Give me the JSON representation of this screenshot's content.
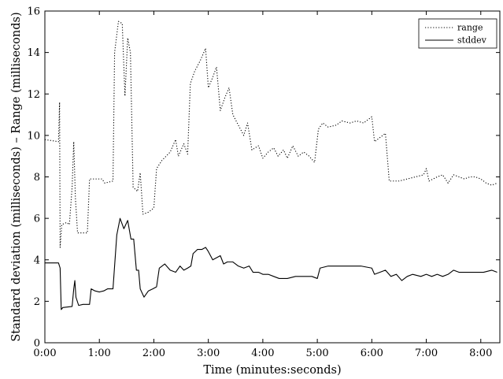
{
  "chart_data": {
    "type": "line",
    "xlabel": "Time (minutes:seconds)",
    "ylabel": "Standard deviation (milliseconds) – Range (milliseconds)",
    "xlim": [
      0,
      8.35
    ],
    "ylim": [
      0,
      16
    ],
    "x_unit": "minutes",
    "xticks": [
      {
        "value": 0,
        "label": "0:00"
      },
      {
        "value": 1,
        "label": "1:00"
      },
      {
        "value": 2,
        "label": "2:00"
      },
      {
        "value": 3,
        "label": "3:00"
      },
      {
        "value": 4,
        "label": "4:00"
      },
      {
        "value": 5,
        "label": "5:00"
      },
      {
        "value": 6,
        "label": "6:00"
      },
      {
        "value": 7,
        "label": "7:00"
      },
      {
        "value": 8,
        "label": "8:00"
      }
    ],
    "yticks": [
      {
        "value": 0,
        "label": "0"
      },
      {
        "value": 2,
        "label": "2"
      },
      {
        "value": 4,
        "label": "4"
      },
      {
        "value": 6,
        "label": "6"
      },
      {
        "value": 8,
        "label": "8"
      },
      {
        "value": 10,
        "label": "10"
      },
      {
        "value": 12,
        "label": "12"
      },
      {
        "value": 14,
        "label": "14"
      },
      {
        "value": 16,
        "label": "16"
      }
    ],
    "grid": false,
    "legend_position": "top-right",
    "series": [
      {
        "name": "range",
        "style": "dotted",
        "color": "#000000",
        "points": [
          [
            0.0,
            9.8
          ],
          [
            0.25,
            9.7
          ],
          [
            0.27,
            11.6
          ],
          [
            0.28,
            4.6
          ],
          [
            0.31,
            5.7
          ],
          [
            0.4,
            5.8
          ],
          [
            0.45,
            5.7
          ],
          [
            0.5,
            7.5
          ],
          [
            0.53,
            9.7
          ],
          [
            0.56,
            7.0
          ],
          [
            0.6,
            5.3
          ],
          [
            0.7,
            5.3
          ],
          [
            0.78,
            5.3
          ],
          [
            0.82,
            7.9
          ],
          [
            0.95,
            7.9
          ],
          [
            1.05,
            7.9
          ],
          [
            1.1,
            7.7
          ],
          [
            1.25,
            7.8
          ],
          [
            1.28,
            14.0
          ],
          [
            1.35,
            15.5
          ],
          [
            1.42,
            15.4
          ],
          [
            1.47,
            11.9
          ],
          [
            1.52,
            14.7
          ],
          [
            1.57,
            14.0
          ],
          [
            1.62,
            7.5
          ],
          [
            1.7,
            7.3
          ],
          [
            1.75,
            8.2
          ],
          [
            1.8,
            6.2
          ],
          [
            1.9,
            6.3
          ],
          [
            2.0,
            6.5
          ],
          [
            2.05,
            8.4
          ],
          [
            2.15,
            8.8
          ],
          [
            2.3,
            9.2
          ],
          [
            2.4,
            9.8
          ],
          [
            2.45,
            9.0
          ],
          [
            2.55,
            9.6
          ],
          [
            2.62,
            9.1
          ],
          [
            2.67,
            12.5
          ],
          [
            2.75,
            13.1
          ],
          [
            2.85,
            13.6
          ],
          [
            2.95,
            14.2
          ],
          [
            3.0,
            12.3
          ],
          [
            3.08,
            12.8
          ],
          [
            3.15,
            13.3
          ],
          [
            3.22,
            11.2
          ],
          [
            3.3,
            11.8
          ],
          [
            3.38,
            12.3
          ],
          [
            3.45,
            11.0
          ],
          [
            3.55,
            10.5
          ],
          [
            3.65,
            10.0
          ],
          [
            3.72,
            10.6
          ],
          [
            3.8,
            9.3
          ],
          [
            3.92,
            9.5
          ],
          [
            4.0,
            8.9
          ],
          [
            4.1,
            9.2
          ],
          [
            4.2,
            9.4
          ],
          [
            4.28,
            9.0
          ],
          [
            4.38,
            9.3
          ],
          [
            4.45,
            8.9
          ],
          [
            4.55,
            9.5
          ],
          [
            4.65,
            9.0
          ],
          [
            4.75,
            9.2
          ],
          [
            4.85,
            9.0
          ],
          [
            4.95,
            8.7
          ],
          [
            5.02,
            10.3
          ],
          [
            5.1,
            10.6
          ],
          [
            5.2,
            10.4
          ],
          [
            5.35,
            10.5
          ],
          [
            5.45,
            10.7
          ],
          [
            5.6,
            10.6
          ],
          [
            5.72,
            10.7
          ],
          [
            5.85,
            10.6
          ],
          [
            6.0,
            10.9
          ],
          [
            6.05,
            9.7
          ],
          [
            6.15,
            9.9
          ],
          [
            6.25,
            10.1
          ],
          [
            6.32,
            7.8
          ],
          [
            6.5,
            7.8
          ],
          [
            6.65,
            7.9
          ],
          [
            6.8,
            8.0
          ],
          [
            6.95,
            8.1
          ],
          [
            7.0,
            8.4
          ],
          [
            7.05,
            7.8
          ],
          [
            7.2,
            8.0
          ],
          [
            7.3,
            8.1
          ],
          [
            7.4,
            7.7
          ],
          [
            7.5,
            8.1
          ],
          [
            7.6,
            8.0
          ],
          [
            7.7,
            7.9
          ],
          [
            7.8,
            8.0
          ],
          [
            7.9,
            8.0
          ],
          [
            8.0,
            7.9
          ],
          [
            8.1,
            7.7
          ],
          [
            8.2,
            7.6
          ],
          [
            8.3,
            7.7
          ]
        ]
      },
      {
        "name": "stddev",
        "style": "solid",
        "color": "#000000",
        "points": [
          [
            0.0,
            3.85
          ],
          [
            0.25,
            3.85
          ],
          [
            0.28,
            3.6
          ],
          [
            0.3,
            1.6
          ],
          [
            0.33,
            1.7
          ],
          [
            0.5,
            1.75
          ],
          [
            0.53,
            2.6
          ],
          [
            0.55,
            3.0
          ],
          [
            0.57,
            2.2
          ],
          [
            0.62,
            1.8
          ],
          [
            0.7,
            1.85
          ],
          [
            0.82,
            1.85
          ],
          [
            0.85,
            2.6
          ],
          [
            0.92,
            2.5
          ],
          [
            1.0,
            2.45
          ],
          [
            1.08,
            2.5
          ],
          [
            1.15,
            2.6
          ],
          [
            1.25,
            2.6
          ],
          [
            1.32,
            5.2
          ],
          [
            1.38,
            6.0
          ],
          [
            1.45,
            5.5
          ],
          [
            1.52,
            5.9
          ],
          [
            1.58,
            5.0
          ],
          [
            1.63,
            5.0
          ],
          [
            1.68,
            3.5
          ],
          [
            1.72,
            3.5
          ],
          [
            1.75,
            2.6
          ],
          [
            1.82,
            2.2
          ],
          [
            1.9,
            2.5
          ],
          [
            1.98,
            2.6
          ],
          [
            2.05,
            2.7
          ],
          [
            2.1,
            3.6
          ],
          [
            2.2,
            3.8
          ],
          [
            2.3,
            3.5
          ],
          [
            2.4,
            3.4
          ],
          [
            2.48,
            3.7
          ],
          [
            2.55,
            3.5
          ],
          [
            2.62,
            3.6
          ],
          [
            2.68,
            3.7
          ],
          [
            2.72,
            4.3
          ],
          [
            2.8,
            4.5
          ],
          [
            2.88,
            4.5
          ],
          [
            2.95,
            4.6
          ],
          [
            3.0,
            4.4
          ],
          [
            3.08,
            4.0
          ],
          [
            3.15,
            4.1
          ],
          [
            3.22,
            4.2
          ],
          [
            3.28,
            3.8
          ],
          [
            3.35,
            3.9
          ],
          [
            3.45,
            3.9
          ],
          [
            3.55,
            3.7
          ],
          [
            3.65,
            3.6
          ],
          [
            3.75,
            3.7
          ],
          [
            3.82,
            3.4
          ],
          [
            3.92,
            3.4
          ],
          [
            4.0,
            3.3
          ],
          [
            4.1,
            3.3
          ],
          [
            4.2,
            3.2
          ],
          [
            4.3,
            3.1
          ],
          [
            4.45,
            3.1
          ],
          [
            4.6,
            3.2
          ],
          [
            4.75,
            3.2
          ],
          [
            4.9,
            3.2
          ],
          [
            5.0,
            3.1
          ],
          [
            5.05,
            3.6
          ],
          [
            5.2,
            3.7
          ],
          [
            5.4,
            3.7
          ],
          [
            5.6,
            3.7
          ],
          [
            5.8,
            3.7
          ],
          [
            6.0,
            3.6
          ],
          [
            6.05,
            3.3
          ],
          [
            6.15,
            3.4
          ],
          [
            6.25,
            3.5
          ],
          [
            6.35,
            3.2
          ],
          [
            6.45,
            3.3
          ],
          [
            6.55,
            3.0
          ],
          [
            6.65,
            3.2
          ],
          [
            6.75,
            3.3
          ],
          [
            6.9,
            3.2
          ],
          [
            7.0,
            3.3
          ],
          [
            7.1,
            3.2
          ],
          [
            7.2,
            3.3
          ],
          [
            7.3,
            3.2
          ],
          [
            7.4,
            3.3
          ],
          [
            7.5,
            3.5
          ],
          [
            7.6,
            3.4
          ],
          [
            7.75,
            3.4
          ],
          [
            7.9,
            3.4
          ],
          [
            8.05,
            3.4
          ],
          [
            8.2,
            3.5
          ],
          [
            8.3,
            3.4
          ]
        ]
      }
    ]
  }
}
